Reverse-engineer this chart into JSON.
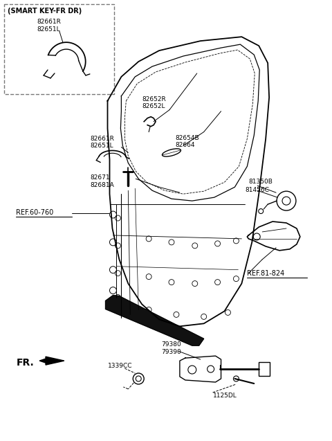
{
  "bg_color": "#ffffff",
  "line_color": "#000000",
  "fig_width": 4.8,
  "fig_height": 6.37,
  "dpi": 100,
  "labels": {
    "smart_key_box_title": "(SMART KEY-FR DR)",
    "lbl_82661R_82651L_box": "82661R\n82651L",
    "lbl_82652R_82652L": "82652R\n82652L",
    "lbl_82661R_82651L_main": "82661R\n82651L",
    "lbl_82654B_82664": "82654B\n82664",
    "lbl_82671_82681A": "82671\n82681A",
    "lbl_81350B": "81350B",
    "lbl_81456C": "81456C",
    "lbl_ref_60_760": "REF.60-760",
    "lbl_ref_81_824": "REF.81-824",
    "lbl_79380_79390": "79380\n79390",
    "lbl_1339CC": "1339CC",
    "lbl_1125DL": "1125DL",
    "lbl_FR": "FR."
  }
}
